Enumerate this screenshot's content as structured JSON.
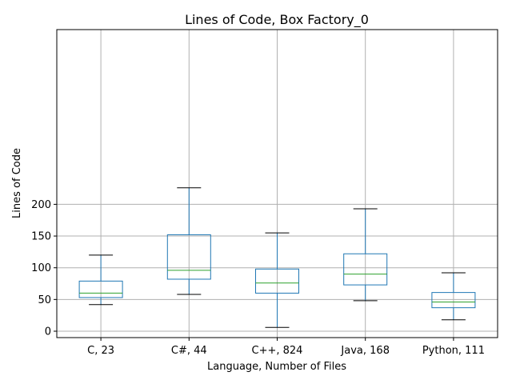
{
  "chart_data": {
    "type": "box",
    "title": "Lines of Code, Box Factory_0",
    "xlabel": "Language, Number of Files",
    "ylabel": "Lines of Code",
    "ylim": [
      -5,
      237
    ],
    "yticks": [
      0,
      50,
      100,
      150,
      200
    ],
    "grid": true,
    "categories": [
      "C, 23",
      "C#, 44",
      "C++, 824",
      "Java, 168",
      "Python, 111"
    ],
    "boxes": [
      {
        "whisker_low": 42,
        "q1": 53,
        "median": 60,
        "q3": 79,
        "whisker_high": 120
      },
      {
        "whisker_low": 58,
        "q1": 82,
        "median": 96,
        "q3": 152,
        "whisker_high": 226
      },
      {
        "whisker_low": 6,
        "q1": 60,
        "median": 76,
        "q3": 98,
        "whisker_high": 155
      },
      {
        "whisker_low": 48,
        "q1": 73,
        "median": 90,
        "q3": 122,
        "whisker_high": 193
      },
      {
        "whisker_low": 18,
        "q1": 37,
        "median": 46,
        "q3": 61,
        "whisker_high": 92
      }
    ],
    "colors": {
      "box": "#1f77b4",
      "median": "#2ca02c",
      "cap": "#000000",
      "grid": "#b0b0b0"
    }
  }
}
